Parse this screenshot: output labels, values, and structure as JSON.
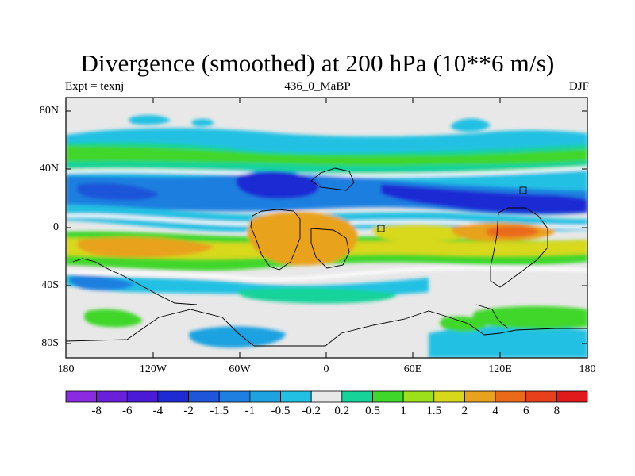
{
  "title": "Divergence (smoothed) at 200 hPa (10**6 m/s)",
  "subtitle_left": "Expt = texnj",
  "subtitle_center": "436_0_MaBP",
  "subtitle_right": "DJF",
  "colors": {
    "neutral": "#e8e8e8",
    "frame": "#000000",
    "coast": "#000000"
  },
  "y_axis_labels": [
    "80N",
    "40N",
    "0",
    "40S",
    "80S"
  ],
  "x_axis_labels": [
    "180",
    "120W",
    "60W",
    "0",
    "60E",
    "120E",
    "180"
  ],
  "colorbar": {
    "labels": [
      "-8",
      "-6",
      "-4",
      "-2",
      "-1.5",
      "-1",
      "-0.5",
      "-0.2",
      "0.2",
      "0.5",
      "1",
      "1.5",
      "2",
      "4",
      "6",
      "8"
    ],
    "colors": [
      "#8a2be2",
      "#6a1fd9",
      "#4a1ad6",
      "#1e2bd4",
      "#1f55d9",
      "#1e7fe0",
      "#1ea2e0",
      "#22c1e3",
      "#e8e8e8",
      "#16d39a",
      "#3fd72a",
      "#9be01a",
      "#d8d81a",
      "#e8a21e",
      "#ea6a1a",
      "#e8401a",
      "#e01a1a"
    ]
  }
}
